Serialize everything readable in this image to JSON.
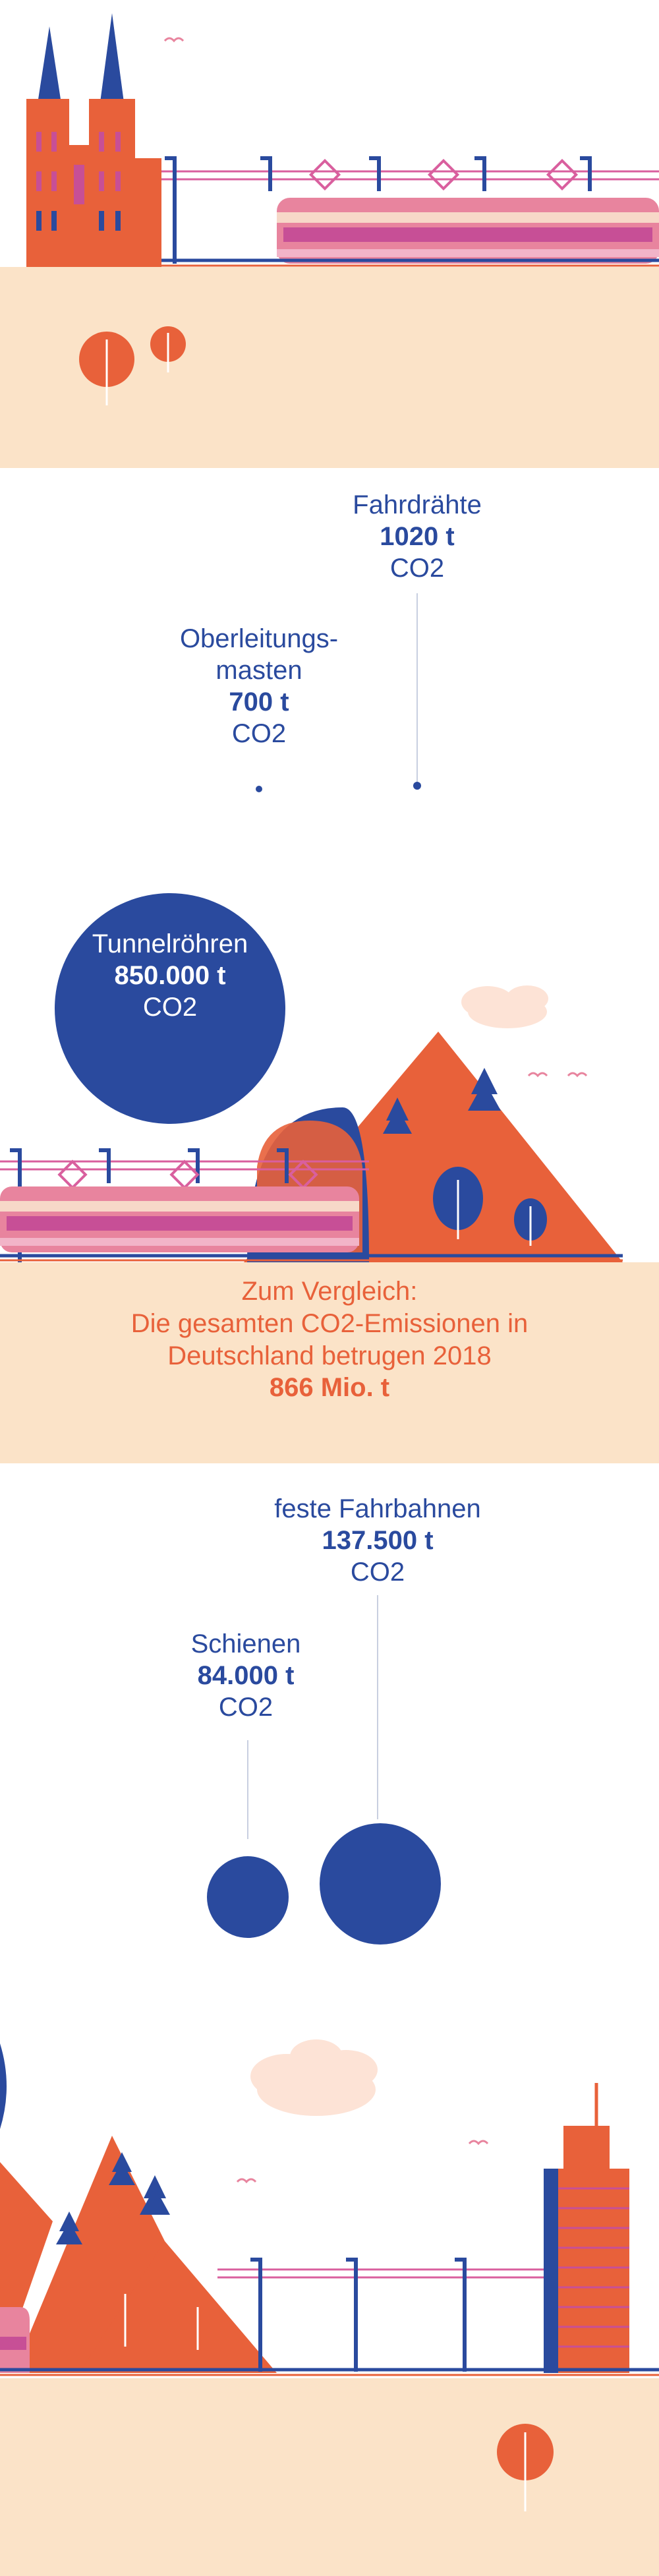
{
  "labels": {
    "fahrdraehte": {
      "name": "Fahrdrähte",
      "value": "1020 t",
      "unit": "CO2"
    },
    "oberleitungsmasten": {
      "name_line1": "Oberleitungs-",
      "name_line2": "masten",
      "value": "700 t",
      "unit": "CO2"
    },
    "tunnelroehren": {
      "name": "Tunnelröhren",
      "value": "850.000 t",
      "unit": "CO2"
    },
    "feste_fahrbahnen": {
      "name": "feste Fahrbahnen",
      "value": "137.500 t",
      "unit": "CO2"
    },
    "schienen": {
      "name": "Schienen",
      "value": "84.000 t",
      "unit": "CO2"
    }
  },
  "comparison": {
    "line1": "Zum Vergleich:",
    "line2": "Die gesamten CO2-Emissionen in",
    "line3": "Deutschland betrugen 2018",
    "value": "866 Mio. t"
  },
  "colors": {
    "blue": "#2a4a9e",
    "orange": "#e8613a",
    "pink": "#d95f9e",
    "sand": "#fbe3c8",
    "cream": "#fdf0d8"
  },
  "icons": [
    "cathedral-icon",
    "train-icon",
    "tree-icon",
    "mountain-icon",
    "cloud-icon",
    "tower-icon",
    "bird-icon"
  ]
}
